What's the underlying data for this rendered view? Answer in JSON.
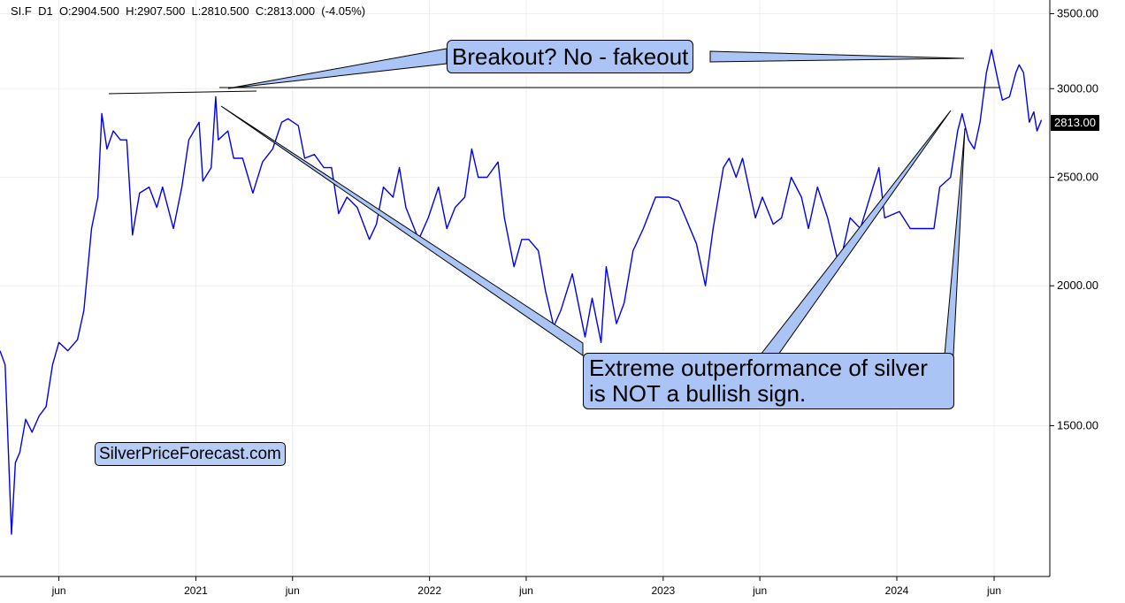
{
  "header": {
    "symbol": "SI.F",
    "interval": "D1",
    "ohlc_text": "O:2904.500  H:2907.500  L:2810.500  C:2813.000  (-4.05%)"
  },
  "annotations": {
    "breakout": "Breakout? No - fakeout",
    "outperformance_line1": "Extreme outperformance of silver",
    "outperformance_line2": "is NOT a bullish sign.",
    "watermark": "SilverPriceForecast.com"
  },
  "last_price_tag": "2813.00",
  "colors": {
    "series": "#0000ee",
    "callout_fill": "#a9c4f5",
    "grid": "#eeeeee"
  },
  "chart_data": {
    "type": "line",
    "scale": "log",
    "ylim": [
      1100,
      3600
    ],
    "y_ticks": [
      {
        "value": 3500,
        "label": "3500.00"
      },
      {
        "value": 3000,
        "label": "3000.00"
      },
      {
        "value": 2500,
        "label": "2500.00"
      },
      {
        "value": 2000,
        "label": "2000.00"
      },
      {
        "value": 1500,
        "label": "1500.00"
      }
    ],
    "x_ticks": [
      {
        "date": "2020-06-01",
        "label": "jun"
      },
      {
        "date": "2021-01-01",
        "label": "2021"
      },
      {
        "date": "2021-06-01",
        "label": "jun"
      },
      {
        "date": "2022-01-01",
        "label": "2022"
      },
      {
        "date": "2022-06-01",
        "label": "jun"
      },
      {
        "date": "2023-01-01",
        "label": "2023"
      },
      {
        "date": "2023-06-01",
        "label": "jun"
      },
      {
        "date": "2024-01-01",
        "label": "2024"
      },
      {
        "date": "2024-06-01",
        "label": "jun"
      }
    ],
    "xlim": [
      "2020-03-01",
      "2024-08-27"
    ],
    "series": [
      {
        "points": [
          [
            "2020-03-01",
            1750
          ],
          [
            "2020-03-09",
            1700
          ],
          [
            "2020-03-19",
            1200
          ],
          [
            "2020-03-25",
            1390
          ],
          [
            "2020-04-01",
            1420
          ],
          [
            "2020-04-10",
            1520
          ],
          [
            "2020-04-20",
            1480
          ],
          [
            "2020-05-01",
            1530
          ],
          [
            "2020-05-12",
            1560
          ],
          [
            "2020-05-22",
            1700
          ],
          [
            "2020-06-01",
            1780
          ],
          [
            "2020-06-15",
            1750
          ],
          [
            "2020-06-30",
            1790
          ],
          [
            "2020-07-10",
            1900
          ],
          [
            "2020-07-22",
            2250
          ],
          [
            "2020-08-01",
            2400
          ],
          [
            "2020-08-07",
            2850
          ],
          [
            "2020-08-15",
            2650
          ],
          [
            "2020-08-25",
            2750
          ],
          [
            "2020-09-05",
            2700
          ],
          [
            "2020-09-15",
            2700
          ],
          [
            "2020-09-24",
            2220
          ],
          [
            "2020-10-05",
            2420
          ],
          [
            "2020-10-20",
            2450
          ],
          [
            "2020-11-01",
            2350
          ],
          [
            "2020-11-10",
            2450
          ],
          [
            "2020-11-27",
            2250
          ],
          [
            "2020-12-10",
            2450
          ],
          [
            "2020-12-21",
            2700
          ],
          [
            "2021-01-06",
            2800
          ],
          [
            "2021-01-12",
            2480
          ],
          [
            "2021-01-25",
            2550
          ],
          [
            "2021-02-01",
            2950
          ],
          [
            "2021-02-05",
            2700
          ],
          [
            "2021-02-20",
            2750
          ],
          [
            "2021-03-01",
            2600
          ],
          [
            "2021-03-15",
            2600
          ],
          [
            "2021-03-31",
            2420
          ],
          [
            "2021-04-15",
            2580
          ],
          [
            "2021-05-01",
            2650
          ],
          [
            "2021-05-15",
            2800
          ],
          [
            "2021-05-25",
            2820
          ],
          [
            "2021-06-10",
            2780
          ],
          [
            "2021-06-20",
            2600
          ],
          [
            "2021-07-05",
            2620
          ],
          [
            "2021-07-20",
            2550
          ],
          [
            "2021-08-01",
            2550
          ],
          [
            "2021-08-12",
            2320
          ],
          [
            "2021-08-25",
            2400
          ],
          [
            "2021-09-10",
            2350
          ],
          [
            "2021-09-29",
            2200
          ],
          [
            "2021-10-10",
            2270
          ],
          [
            "2021-10-21",
            2450
          ],
          [
            "2021-11-05",
            2400
          ],
          [
            "2021-11-15",
            2550
          ],
          [
            "2021-11-25",
            2350
          ],
          [
            "2021-12-15",
            2200
          ],
          [
            "2021-12-30",
            2300
          ],
          [
            "2022-01-15",
            2450
          ],
          [
            "2022-01-28",
            2250
          ],
          [
            "2022-02-10",
            2350
          ],
          [
            "2022-02-25",
            2400
          ],
          [
            "2022-03-08",
            2650
          ],
          [
            "2022-03-18",
            2500
          ],
          [
            "2022-04-01",
            2500
          ],
          [
            "2022-04-18",
            2580
          ],
          [
            "2022-04-28",
            2300
          ],
          [
            "2022-05-13",
            2080
          ],
          [
            "2022-05-25",
            2200
          ],
          [
            "2022-06-05",
            2200
          ],
          [
            "2022-06-20",
            2150
          ],
          [
            "2022-07-01",
            1980
          ],
          [
            "2022-07-14",
            1840
          ],
          [
            "2022-07-25",
            1900
          ],
          [
            "2022-08-12",
            2050
          ],
          [
            "2022-09-01",
            1800
          ],
          [
            "2022-09-12",
            1950
          ],
          [
            "2022-09-26",
            1780
          ],
          [
            "2022-10-04",
            2080
          ],
          [
            "2022-10-20",
            1850
          ],
          [
            "2022-11-01",
            1930
          ],
          [
            "2022-11-15",
            2150
          ],
          [
            "2022-12-01",
            2250
          ],
          [
            "2022-12-20",
            2400
          ],
          [
            "2023-01-10",
            2400
          ],
          [
            "2023-01-25",
            2380
          ],
          [
            "2023-02-05",
            2300
          ],
          [
            "2023-02-22",
            2180
          ],
          [
            "2023-03-08",
            2000
          ],
          [
            "2023-03-20",
            2250
          ],
          [
            "2023-04-05",
            2550
          ],
          [
            "2023-04-14",
            2600
          ],
          [
            "2023-04-25",
            2500
          ],
          [
            "2023-05-05",
            2600
          ],
          [
            "2023-05-25",
            2300
          ],
          [
            "2023-06-05",
            2400
          ],
          [
            "2023-06-22",
            2270
          ],
          [
            "2023-07-05",
            2300
          ],
          [
            "2023-07-20",
            2500
          ],
          [
            "2023-08-05",
            2400
          ],
          [
            "2023-08-16",
            2250
          ],
          [
            "2023-08-30",
            2450
          ],
          [
            "2023-09-15",
            2300
          ],
          [
            "2023-10-03",
            2080
          ],
          [
            "2023-10-20",
            2300
          ],
          [
            "2023-11-05",
            2250
          ],
          [
            "2023-11-20",
            2400
          ],
          [
            "2023-12-04",
            2550
          ],
          [
            "2023-12-13",
            2300
          ],
          [
            "2024-01-05",
            2330
          ],
          [
            "2024-01-22",
            2250
          ],
          [
            "2024-02-10",
            2250
          ],
          [
            "2024-02-28",
            2250
          ],
          [
            "2024-03-08",
            2450
          ],
          [
            "2024-03-25",
            2500
          ],
          [
            "2024-04-05",
            2750
          ],
          [
            "2024-04-12",
            2850
          ],
          [
            "2024-04-22",
            2700
          ],
          [
            "2024-05-01",
            2650
          ],
          [
            "2024-05-10",
            2800
          ],
          [
            "2024-05-20",
            3100
          ],
          [
            "2024-05-28",
            3250
          ],
          [
            "2024-06-07",
            3050
          ],
          [
            "2024-06-14",
            2930
          ],
          [
            "2024-06-25",
            2950
          ],
          [
            "2024-07-05",
            3100
          ],
          [
            "2024-07-10",
            3150
          ],
          [
            "2024-07-17",
            3100
          ],
          [
            "2024-07-26",
            2800
          ],
          [
            "2024-08-02",
            2860
          ],
          [
            "2024-08-07",
            2750
          ],
          [
            "2024-08-14",
            2813
          ]
        ]
      }
    ]
  }
}
